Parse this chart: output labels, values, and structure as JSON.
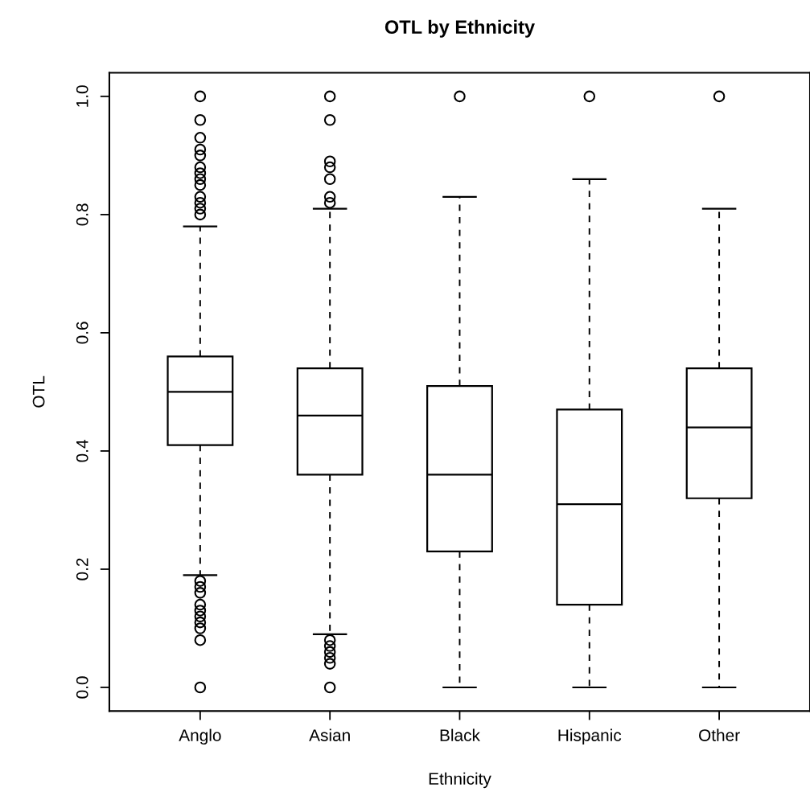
{
  "chart_data": {
    "type": "box",
    "title": "OTL by Ethnicity",
    "xlabel": "Ethnicity",
    "ylabel": "OTL",
    "categories": [
      "Anglo",
      "Asian",
      "Black",
      "Hispanic",
      "Other"
    ],
    "boxes": [
      {
        "low": 0.19,
        "q1": 0.41,
        "median": 0.5,
        "q3": 0.56,
        "high": 0.78,
        "outliers": [
          1.0,
          0.96,
          0.93,
          0.91,
          0.9,
          0.88,
          0.87,
          0.86,
          0.85,
          0.83,
          0.82,
          0.81,
          0.8,
          0.18,
          0.17,
          0.16,
          0.14,
          0.13,
          0.12,
          0.11,
          0.1,
          0.08,
          0.0
        ]
      },
      {
        "low": 0.09,
        "q1": 0.36,
        "median": 0.46,
        "q3": 0.54,
        "high": 0.81,
        "outliers": [
          1.0,
          0.96,
          0.89,
          0.88,
          0.86,
          0.83,
          0.82,
          0.08,
          0.07,
          0.06,
          0.05,
          0.04,
          0.0
        ]
      },
      {
        "low": 0.0,
        "q1": 0.23,
        "median": 0.36,
        "q3": 0.51,
        "high": 0.83,
        "outliers": [
          1.0
        ]
      },
      {
        "low": 0.0,
        "q1": 0.14,
        "median": 0.31,
        "q3": 0.47,
        "high": 0.86,
        "outliers": [
          1.0
        ]
      },
      {
        "low": 0.0,
        "q1": 0.32,
        "median": 0.44,
        "q3": 0.54,
        "high": 0.81,
        "outliers": [
          1.0
        ]
      }
    ],
    "color": "#000000",
    "ylim": [
      -0.04,
      1.04
    ],
    "yticks": [
      {
        "value": 0,
        "label": "0.0"
      },
      {
        "value": 0.2,
        "label": "0.2"
      },
      {
        "value": 0.4,
        "label": "0.4"
      },
      {
        "value": 0.6,
        "label": "0.6"
      },
      {
        "value": 0.8,
        "label": "0.8"
      },
      {
        "value": 1,
        "label": "1.0"
      }
    ],
    "grid": false,
    "legend": false,
    "marker": "circle",
    "line_style": "dashed"
  }
}
